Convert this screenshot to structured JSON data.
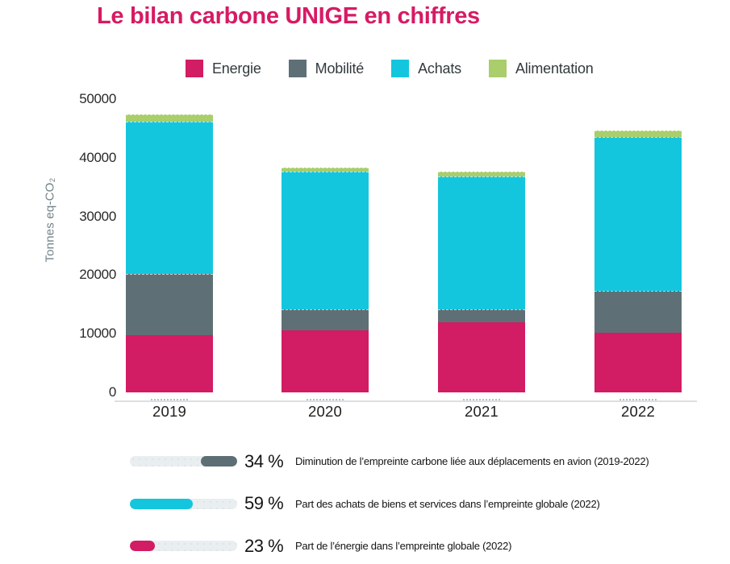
{
  "title": "Le bilan carbone UNIGE en chiffres",
  "colors": {
    "title": "#d71a64",
    "energie": "#d21c63",
    "mobilite": "#5e7076",
    "achats": "#14c6dd",
    "alimentation": "#a9ce6b",
    "stat_gray": "#5d6e74",
    "track": "#e9eef0",
    "axis_text": "#2a2a2a",
    "y_axis_title": "#74838a"
  },
  "legend": {
    "items": [
      {
        "id": "energie",
        "label": "Energie"
      },
      {
        "id": "mobilite",
        "label": "Mobilité"
      },
      {
        "id": "achats",
        "label": "Achats"
      },
      {
        "id": "alimentation",
        "label": "Alimentation"
      }
    ]
  },
  "chart_data": {
    "type": "bar",
    "stacked": true,
    "categories": [
      "2019",
      "2020",
      "2021",
      "2022"
    ],
    "series": [
      {
        "name": "Energie",
        "color_id": "energie",
        "values": [
          9800,
          10600,
          11900,
          10200
        ]
      },
      {
        "name": "Mobilité",
        "color_id": "mobilite",
        "values": [
          10400,
          3500,
          2300,
          7100
        ]
      },
      {
        "name": "Achats",
        "color_id": "achats",
        "values": [
          25900,
          23600,
          22600,
          26300
        ]
      },
      {
        "name": "Alimentation",
        "color_id": "alimentation",
        "values": [
          1300,
          650,
          800,
          1000
        ]
      }
    ],
    "totals": [
      47400,
      38350,
      37600,
      44600
    ],
    "title": "Le bilan carbone UNIGE en chiffres",
    "xlabel": "",
    "ylabel": "Tonnes eq-CO₂",
    "ylim": [
      0,
      50000
    ],
    "yticks": [
      0,
      10000,
      20000,
      30000,
      40000,
      50000
    ],
    "grid": false,
    "legend_position": "top"
  },
  "stats": [
    {
      "percent": "34 %",
      "value": 34,
      "align": "right",
      "color_id": "stat_gray",
      "label": "Diminution de l’empreinte carbone liée aux déplacements en avion (2019-2022)"
    },
    {
      "percent": "59 %",
      "value": 59,
      "align": "left",
      "color_id": "achats",
      "label": "Part des achats de biens et services dans l’empreinte globale (2022)"
    },
    {
      "percent": "23 %",
      "value": 23,
      "align": "left",
      "color_id": "energie",
      "label": "Part de l’énergie dans l’empreinte globale (2022)"
    }
  ]
}
